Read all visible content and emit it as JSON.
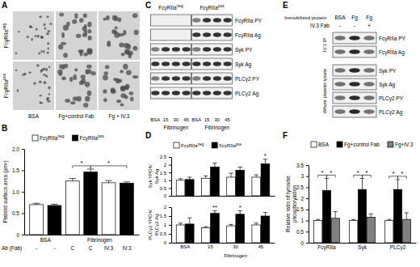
{
  "chart_data": [
    {
      "type": "bar",
      "panel_label": "B",
      "y_label": "Platelet surface area (µm²)",
      "x_label": "Ab (Fab)",
      "categories": [
        "-",
        "-",
        "C",
        "C",
        "IV.3",
        "IV.3"
      ],
      "groups": [
        {
          "label": "BSA",
          "categories": [
            0,
            1
          ]
        },
        {
          "label": "Fibrinogen",
          "categories": [
            2,
            5
          ]
        }
      ],
      "series": [
        {
          "name": "FcγRIIa",
          "superscript": "neg",
          "color": "#ffffff",
          "values": [
            0.7,
            null,
            1.25,
            null,
            1.21,
            null
          ],
          "errors": [
            0.03,
            null,
            0.06,
            null,
            0.05,
            null
          ]
        },
        {
          "name": "FcγRIIa",
          "superscript": "pos",
          "color": "#000000",
          "values": [
            null,
            0.68,
            null,
            1.46,
            null,
            1.2
          ],
          "errors": [
            null,
            0.03,
            null,
            0.07,
            null,
            0.03
          ]
        }
      ],
      "ylim": [
        0,
        2
      ],
      "yticks": [
        0,
        0.5,
        {
          "value": 1,
          "label": "1.0"
        },
        1.5,
        {
          "value": 2,
          "label": "2.0"
        }
      ],
      "legend": "top",
      "annotations": [
        {
          "text": "*",
          "from": 2,
          "to": 3
        },
        {
          "text": "*",
          "from": 3,
          "to": 5
        }
      ]
    },
    {
      "type": "bar",
      "panel_label": "D",
      "y_label": [
        "Syk YPO4/",
        "Syk Ag"
      ],
      "categories": [
        "BSA",
        "15",
        "30",
        "45"
      ],
      "tick_labels": "y",
      "series": [
        {
          "name": "FcγRIIa",
          "superscript": "neg",
          "color": "#ffffff",
          "values": [
            1.0,
            1.13,
            1.2,
            1.2
          ],
          "errors": [
            0.1,
            0.15,
            0.25,
            0.15
          ]
        },
        {
          "name": "FcγRIIa",
          "superscript": "pos",
          "color": "#000000",
          "values": [
            1.05,
            1.85,
            1.65,
            2.05
          ],
          "errors": [
            0.15,
            0.25,
            0.2,
            0.3
          ]
        }
      ],
      "ylim": [
        0,
        2.5
      ],
      "yticks": [
        0,
        0.5,
        1,
        1.5,
        2,
        2.5
      ],
      "legend": "top",
      "annotations": [
        {
          "text": "*",
          "category": 3,
          "series": 1
        }
      ]
    },
    {
      "type": "bar",
      "y_label": [
        "PLCγ2 YPO4/",
        "PLCγ2 Ag"
      ],
      "categories": [
        "BSA",
        "15",
        "30",
        "45"
      ],
      "groups": [
        {
          "label": "Fibrinogen",
          "categories": [
            1,
            3
          ]
        }
      ],
      "series": [
        {
          "color": "#ffffff",
          "values": [
            1.0,
            0.85,
            0.95,
            1.0
          ],
          "errors": [
            0.1,
            0.05,
            0.08,
            0.1
          ]
        },
        {
          "color": "#000000",
          "values": [
            1.05,
            1.65,
            1.6,
            1.5
          ],
          "errors": [
            0.35,
            0.15,
            0.2,
            0.2
          ]
        }
      ],
      "ylim": [
        0,
        2
      ],
      "yticks": [
        0,
        0.5,
        1,
        1.5,
        2
      ],
      "annotations": [
        {
          "text": "**",
          "category": 1,
          "series": 1
        },
        {
          "text": "*",
          "category": 2,
          "series": 1
        }
      ]
    },
    {
      "type": "bar",
      "panel_label": "F",
      "y_label": [
        "Relative ratio of tyrosine",
        "phosphorylation"
      ],
      "categories": [
        "FcγRIIa",
        "Syk",
        "PLCγ2"
      ],
      "series": [
        {
          "name": "BSA",
          "color": "#ffffff",
          "values": [
            1,
            1,
            1
          ],
          "errors": [
            0.05,
            0.05,
            0.05
          ]
        },
        {
          "name": "Fg+control Fab",
          "color": "#000000",
          "values": [
            2.35,
            2.4,
            2.4
          ],
          "errors": [
            0.55,
            0.5,
            0.45
          ]
        },
        {
          "name": "Fg+IV.3",
          "color": "#808080",
          "values": [
            1.1,
            1.15,
            1.05
          ],
          "errors": [
            0.3,
            0.15,
            0.3
          ]
        }
      ],
      "ylim": [
        0,
        3.5
      ],
      "yticks": [
        0,
        0.5,
        1,
        1.5,
        2,
        2.5,
        3,
        3.5
      ],
      "legend": "top",
      "annotations": [
        {
          "text": "*",
          "category": 0,
          "series": [
            0,
            1
          ]
        },
        {
          "text": "*",
          "category": 0,
          "series": [
            1,
            2
          ]
        },
        {
          "text": "*",
          "category": 1,
          "series": [
            0,
            1
          ]
        },
        {
          "text": "*",
          "category": 1,
          "series": [
            1,
            2
          ]
        },
        {
          "text": "*",
          "category": 2,
          "series": [
            0,
            1
          ]
        },
        {
          "text": "*",
          "category": 2,
          "series": [
            1,
            2
          ]
        }
      ]
    }
  ],
  "images": {
    "A": {
      "panel_label": "A",
      "rows": [
        {
          "name": "FcγRIIa",
          "superscript": "neg"
        },
        {
          "name": "FcγRIIa",
          "superscript": "pos"
        }
      ],
      "columns": [
        "BSA",
        "Fg+control Fab",
        "Fg + IV.3"
      ]
    },
    "C": {
      "panel_label": "C",
      "groups": [
        {
          "name": "FcγRIIa",
          "superscript": "neg"
        },
        {
          "name": "FcγRIIa",
          "superscript": "pos"
        }
      ],
      "lanes": [
        "BSA",
        "15",
        "30",
        "45"
      ],
      "lane_group": "Fibrinogen",
      "rows": [
        "FcγRIIa PY",
        "FcγRIIa Ag",
        "Syk PY",
        "Syk Ag",
        "PLCγ2 PY",
        "PLCγ2 Ag"
      ]
    },
    "E": {
      "panel_label": "E",
      "header": "Immobilized protein",
      "lanes": [
        "BSA",
        "Fg",
        "Fg"
      ],
      "treatment_label": "IV.3 Fab",
      "treatment": [
        "-",
        "-",
        "+"
      ],
      "sections": [
        {
          "label": "IV.3 IP",
          "rows": [
            "FcγRIIa PY",
            "FcγRIIa Ag"
          ]
        },
        {
          "label": "Whole platelet lysate",
          "rows": [
            "Syk PY",
            "Syk Ag",
            "PLCγ2 PY",
            "PLCγ2 Ag"
          ]
        }
      ]
    }
  }
}
